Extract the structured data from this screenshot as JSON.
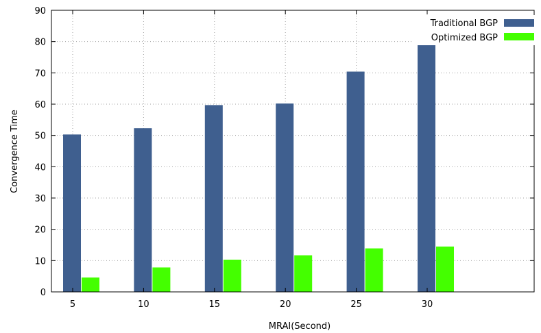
{
  "chart_data": {
    "type": "bar",
    "categories": [
      "5",
      "10",
      "15",
      "20",
      "25",
      "30"
    ],
    "series": [
      {
        "name": "Traditional BGP",
        "values": [
          50.3,
          52.3,
          59.7,
          60.2,
          70.4,
          79.5
        ],
        "color": "#3f5f8f"
      },
      {
        "name": "Optimized BGP",
        "values": [
          4.6,
          7.8,
          10.3,
          11.7,
          13.9,
          14.5
        ],
        "color": "#44ff00"
      }
    ],
    "xlabel": "MRAI(Second)",
    "ylabel": "Convergence Time",
    "ylim": [
      0,
      90
    ],
    "yticks": [
      "0",
      "10",
      "20",
      "30",
      "40",
      "50",
      "60",
      "70",
      "80",
      "90"
    ],
    "grid": true,
    "legend_position": "top-right"
  }
}
